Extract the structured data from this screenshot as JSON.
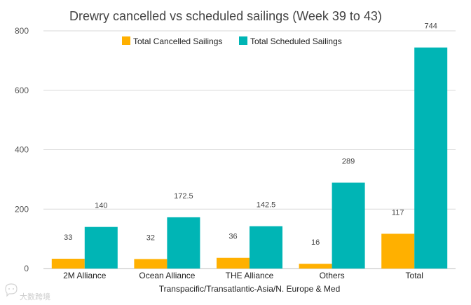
{
  "chart_data": {
    "type": "bar",
    "title": "Drewry cancelled vs scheduled sailings (Week 39 to 43)",
    "xlabel": "Transpacific/Transatlantic-Asia/N. Europe & Med",
    "ylabel": "",
    "categories": [
      "2M Alliance",
      "Ocean Alliance",
      "THE Alliance",
      "Others",
      "Total"
    ],
    "series": [
      {
        "name": "Total Cancelled Sailings",
        "values": [
          33,
          32,
          36,
          16,
          117
        ],
        "labels": [
          "33",
          "32",
          "36",
          "16",
          "117"
        ],
        "color": "#FFB000"
      },
      {
        "name": "Total Scheduled Sailings",
        "values": [
          140,
          172.5,
          142.5,
          289,
          744
        ],
        "labels": [
          "140",
          "172.5",
          "142.5",
          "289",
          "744"
        ],
        "color": "#00B5B5"
      }
    ],
    "ylim": [
      0,
      800
    ],
    "yticks": [
      0,
      200,
      400,
      600,
      800
    ],
    "grid": true,
    "legend_position": "top-center"
  },
  "watermark": {
    "text": "大数跨境",
    "icon": "chat-bubble-icon"
  }
}
